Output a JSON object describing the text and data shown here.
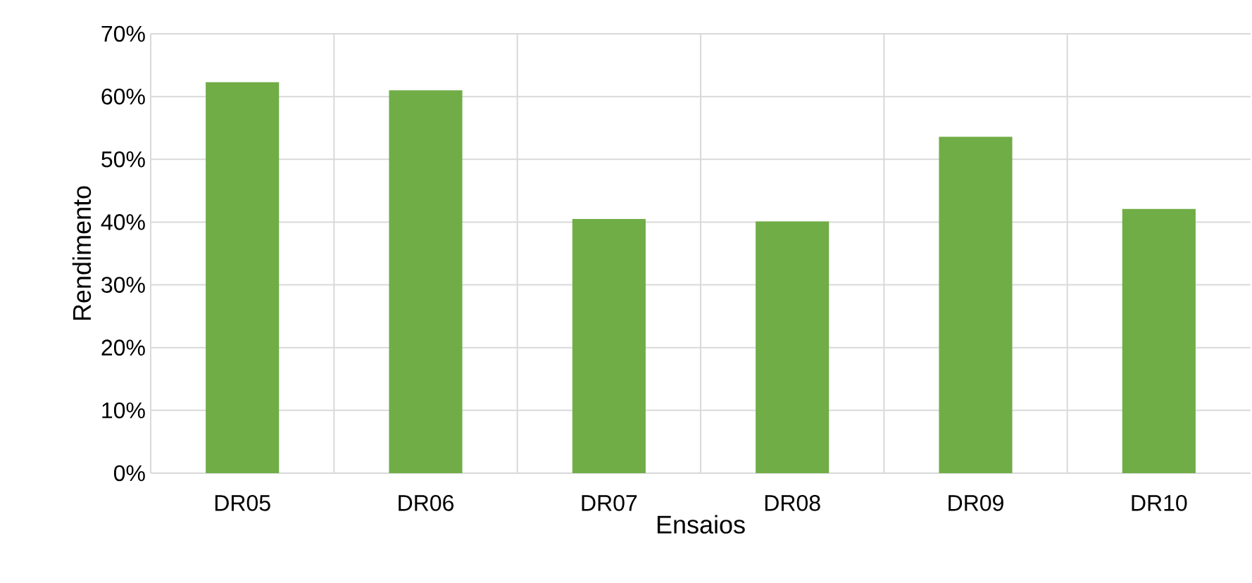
{
  "chart_data": {
    "type": "bar",
    "xlabel": "Ensaios",
    "ylabel": "Rendimento",
    "categories": [
      "DR05",
      "DR06",
      "DR07",
      "DR08",
      "DR09",
      "DR10"
    ],
    "values": [
      62.3,
      61.0,
      40.5,
      40.1,
      53.6,
      42.1
    ],
    "color": "#70ad47",
    "ylim": [
      0,
      70
    ],
    "yticks": [
      {
        "value": 0,
        "label": "0%"
      },
      {
        "value": 10,
        "label": "10%"
      },
      {
        "value": 20,
        "label": "20%"
      },
      {
        "value": 30,
        "label": "30%"
      },
      {
        "value": 40,
        "label": "40%"
      },
      {
        "value": 50,
        "label": "50%"
      },
      {
        "value": 60,
        "label": "60%"
      },
      {
        "value": 70,
        "label": "70%"
      }
    ],
    "grid": true
  }
}
